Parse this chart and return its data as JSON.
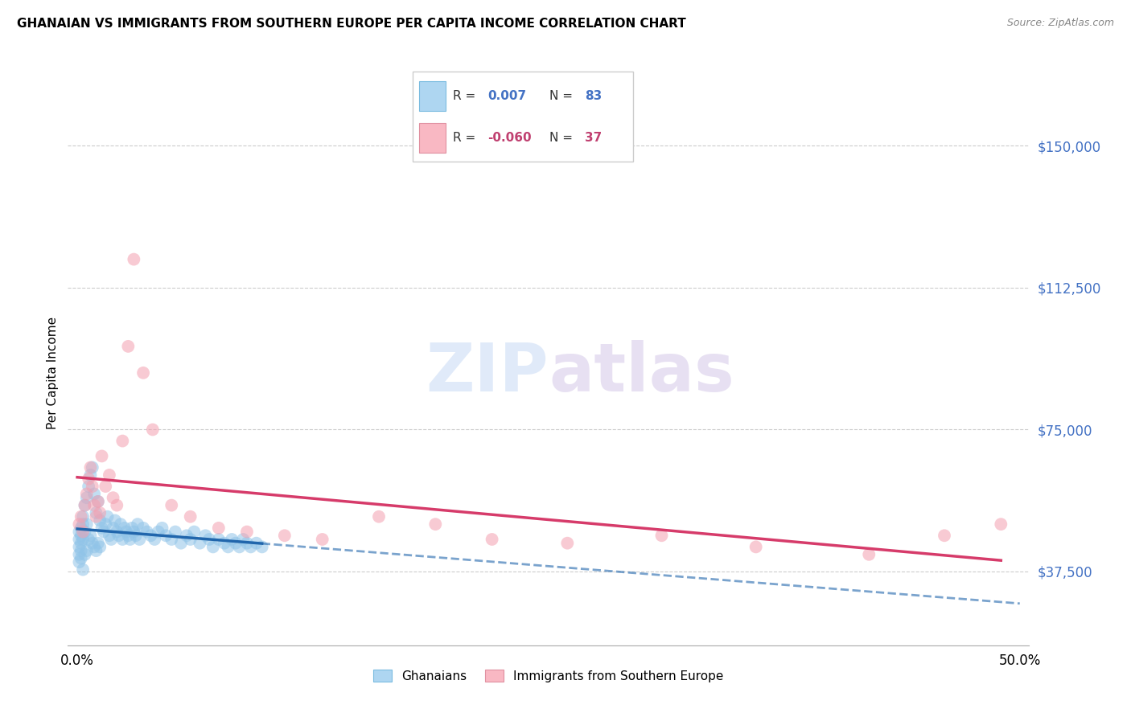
{
  "title": "GHANAIAN VS IMMIGRANTS FROM SOUTHERN EUROPE PER CAPITA INCOME CORRELATION CHART",
  "source": "Source: ZipAtlas.com",
  "ylabel": "Per Capita Income",
  "xlim": [
    0.0,
    0.5
  ],
  "ylim": [
    20000,
    160000
  ],
  "R_blue": 0.007,
  "N_blue": 83,
  "R_pink": -0.06,
  "N_pink": 37,
  "blue_color": "#90c4e8",
  "pink_color": "#f4a0b0",
  "blue_line_color": "#2166ac",
  "pink_line_color": "#d63b6a",
  "yticks": [
    37500,
    75000,
    112500,
    150000
  ],
  "ytick_labels": [
    "$37,500",
    "$75,000",
    "$112,500",
    "$150,000"
  ],
  "blue_x": [
    0.001,
    0.001,
    0.001,
    0.001,
    0.001,
    0.002,
    0.002,
    0.002,
    0.002,
    0.002,
    0.003,
    0.003,
    0.003,
    0.003,
    0.004,
    0.004,
    0.004,
    0.005,
    0.005,
    0.005,
    0.006,
    0.006,
    0.007,
    0.007,
    0.008,
    0.008,
    0.009,
    0.009,
    0.01,
    0.01,
    0.011,
    0.011,
    0.012,
    0.012,
    0.013,
    0.014,
    0.015,
    0.016,
    0.017,
    0.018,
    0.019,
    0.02,
    0.021,
    0.022,
    0.023,
    0.024,
    0.025,
    0.026,
    0.027,
    0.028,
    0.029,
    0.03,
    0.031,
    0.032,
    0.033,
    0.035,
    0.037,
    0.039,
    0.041,
    0.043,
    0.045,
    0.047,
    0.05,
    0.052,
    0.055,
    0.058,
    0.06,
    0.062,
    0.065,
    0.068,
    0.07,
    0.072,
    0.075,
    0.078,
    0.08,
    0.082,
    0.084,
    0.086,
    0.088,
    0.09,
    0.092,
    0.095,
    0.098
  ],
  "blue_y": [
    48000,
    46000,
    44000,
    42000,
    40000,
    49000,
    47000,
    45000,
    43000,
    41000,
    52000,
    50000,
    46000,
    38000,
    55000,
    48000,
    42000,
    57000,
    50000,
    43000,
    60000,
    46000,
    63000,
    47000,
    65000,
    45000,
    58000,
    44000,
    53000,
    43000,
    56000,
    45000,
    51000,
    44000,
    49000,
    48000,
    50000,
    52000,
    47000,
    46000,
    49000,
    51000,
    48000,
    47000,
    50000,
    46000,
    49000,
    48000,
    47000,
    46000,
    49000,
    48000,
    47000,
    50000,
    46000,
    49000,
    48000,
    47000,
    46000,
    48000,
    49000,
    47000,
    46000,
    48000,
    45000,
    47000,
    46000,
    48000,
    45000,
    47000,
    46000,
    44000,
    46000,
    45000,
    44000,
    46000,
    45000,
    44000,
    46000,
    45000,
    44000,
    45000,
    44000
  ],
  "pink_x": [
    0.001,
    0.002,
    0.003,
    0.004,
    0.005,
    0.006,
    0.007,
    0.008,
    0.009,
    0.01,
    0.011,
    0.012,
    0.013,
    0.015,
    0.017,
    0.019,
    0.021,
    0.024,
    0.027,
    0.03,
    0.035,
    0.04,
    0.05,
    0.06,
    0.075,
    0.09,
    0.11,
    0.13,
    0.16,
    0.19,
    0.22,
    0.26,
    0.31,
    0.36,
    0.42,
    0.46,
    0.49
  ],
  "pink_y": [
    50000,
    52000,
    48000,
    55000,
    58000,
    62000,
    65000,
    60000,
    55000,
    52000,
    56000,
    53000,
    68000,
    60000,
    63000,
    57000,
    55000,
    72000,
    97000,
    120000,
    90000,
    75000,
    55000,
    52000,
    49000,
    48000,
    47000,
    46000,
    52000,
    50000,
    46000,
    45000,
    47000,
    44000,
    42000,
    47000,
    50000
  ]
}
